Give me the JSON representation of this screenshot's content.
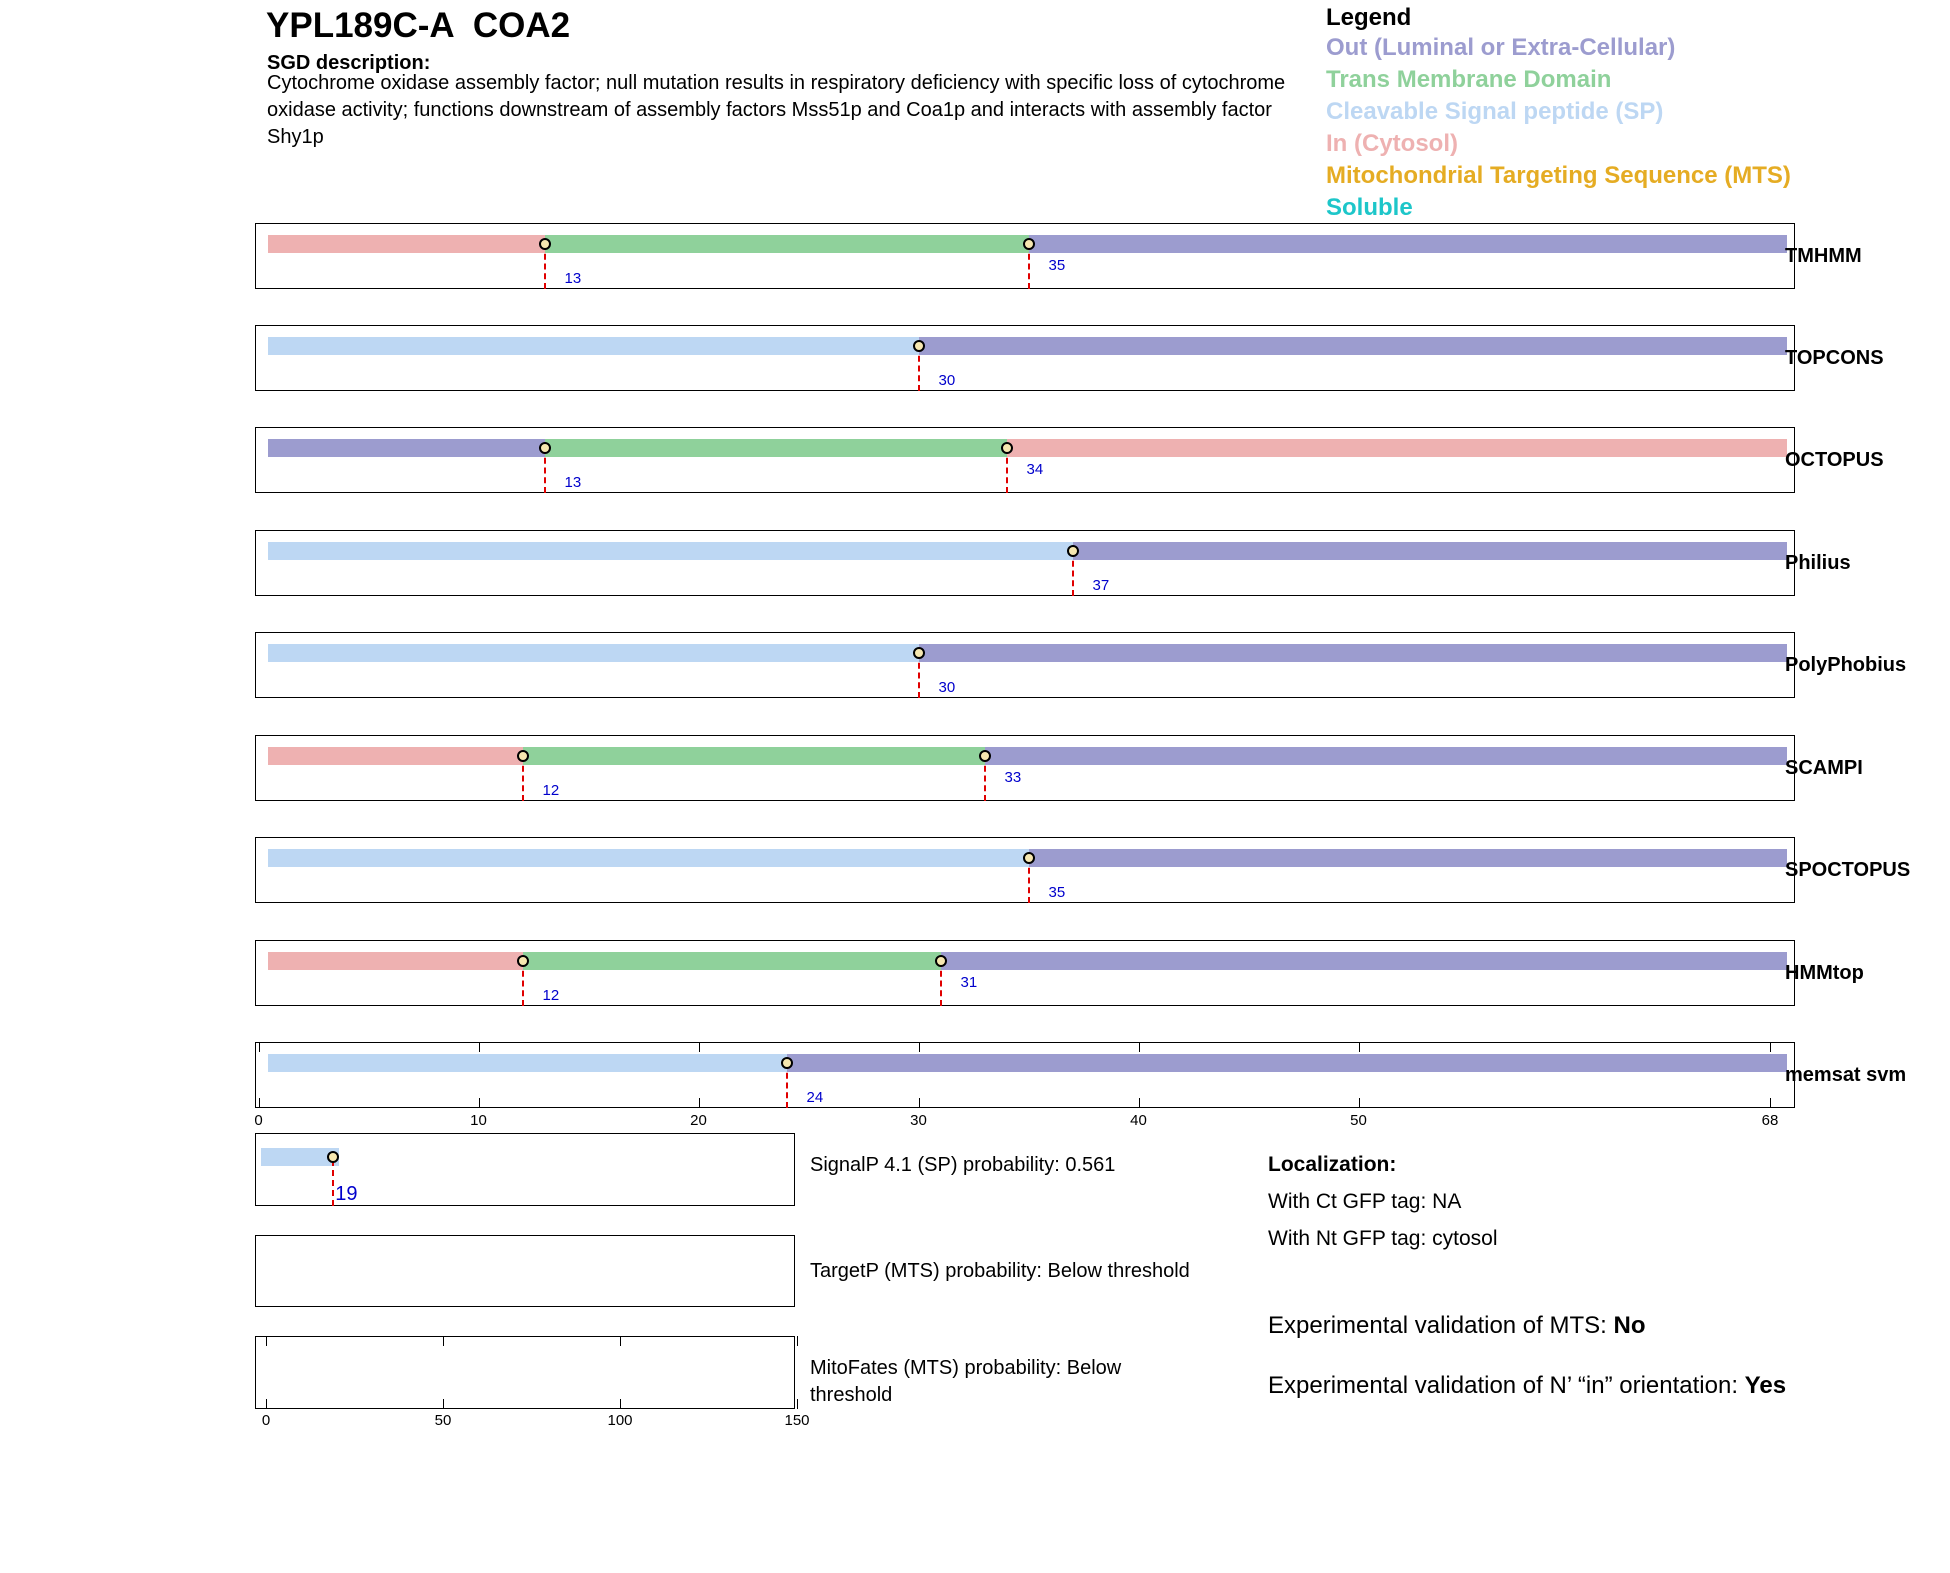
{
  "header": {
    "title": "YPL189C-A  COA2",
    "sgd_heading": "SGD description:",
    "sgd_text": "Cytochrome oxidase assembly factor; null mutation results in respiratory deficiency with specific loss of cytochrome oxidase activity; functions downstream of assembly factors Mss51p and Coa1p and interacts with assembly factor Shy1p"
  },
  "legend": {
    "heading": "Legend",
    "items": [
      {
        "key": "out",
        "label": "Out (Luminal or Extra-Cellular)",
        "color": "#9c9ccf"
      },
      {
        "key": "tm",
        "label": "Trans Membrane Domain",
        "color": "#8fd19b"
      },
      {
        "key": "sp",
        "label": "Cleavable Signal peptide (SP)",
        "color": "#bdd7f3"
      },
      {
        "key": "in",
        "label": "In (Cytosol)",
        "color": "#eeb1b1"
      },
      {
        "key": "mts",
        "label": "Mitochondrial Targeting Sequence (MTS)",
        "color": "#e5ac23"
      },
      {
        "key": "sol",
        "label": "Soluble",
        "color": "#1dc6c9"
      }
    ]
  },
  "chart_data": {
    "type": "topology-tracks",
    "sequence_length": 68,
    "x_ticks": [
      "0",
      "10",
      "20",
      "30",
      "40",
      "50",
      "68"
    ],
    "tracks": [
      {
        "method": "TMHMM",
        "segments": [
          {
            "type": "in",
            "start": 0,
            "end": 13
          },
          {
            "type": "tm",
            "start": 13,
            "end": 35
          },
          {
            "type": "out",
            "start": 35,
            "end": 68
          }
        ],
        "boundaries": [
          "13",
          "35"
        ]
      },
      {
        "method": "TOPCONS",
        "segments": [
          {
            "type": "sp",
            "start": 0,
            "end": 30
          },
          {
            "type": "out",
            "start": 30,
            "end": 68
          }
        ],
        "boundaries": [
          "30"
        ]
      },
      {
        "method": "OCTOPUS",
        "segments": [
          {
            "type": "out",
            "start": 0,
            "end": 13
          },
          {
            "type": "tm",
            "start": 13,
            "end": 34
          },
          {
            "type": "in",
            "start": 34,
            "end": 68
          }
        ],
        "boundaries": [
          "13",
          "34"
        ]
      },
      {
        "method": "Philius",
        "segments": [
          {
            "type": "sp",
            "start": 0,
            "end": 37
          },
          {
            "type": "out",
            "start": 37,
            "end": 68
          }
        ],
        "boundaries": [
          "37"
        ]
      },
      {
        "method": "PolyPhobius",
        "segments": [
          {
            "type": "sp",
            "start": 0,
            "end": 30
          },
          {
            "type": "out",
            "start": 30,
            "end": 68
          }
        ],
        "boundaries": [
          "30"
        ]
      },
      {
        "method": "SCAMPI",
        "segments": [
          {
            "type": "in",
            "start": 0,
            "end": 12
          },
          {
            "type": "tm",
            "start": 12,
            "end": 33
          },
          {
            "type": "out",
            "start": 33,
            "end": 68
          }
        ],
        "boundaries": [
          "12",
          "33"
        ]
      },
      {
        "method": "SPOCTOPUS",
        "segments": [
          {
            "type": "sp",
            "start": 0,
            "end": 35
          },
          {
            "type": "out",
            "start": 35,
            "end": 68
          }
        ],
        "boundaries": [
          "35"
        ]
      },
      {
        "method": "HMMtop",
        "segments": [
          {
            "type": "in",
            "start": 0,
            "end": 12
          },
          {
            "type": "tm",
            "start": 12,
            "end": 31
          },
          {
            "type": "out",
            "start": 31,
            "end": 68
          }
        ],
        "boundaries": [
          "12",
          "31"
        ]
      },
      {
        "method": "memsat svm",
        "segments": [
          {
            "type": "sp",
            "start": 0,
            "end": 24
          },
          {
            "type": "out",
            "start": 24,
            "end": 68
          }
        ],
        "boundaries": [
          "24"
        ]
      }
    ],
    "signalp": {
      "label": "SignalP 4.1 (SP) probability: 0.561",
      "cleavage": "19",
      "range": [
        0,
        150
      ]
    },
    "targetp": {
      "label": "TargetP (MTS) probability: Below threshold"
    },
    "mitofates": {
      "label": "MitoFates (MTS) probability: Below threshold"
    },
    "small_x_ticks": [
      "0",
      "50",
      "100",
      "150"
    ]
  },
  "localization": {
    "heading": "Localization:",
    "ct_gfp": "With Ct GFP tag: NA",
    "nt_gfp": "With Nt GFP tag: cytosol"
  },
  "validation": {
    "mts_label": "Experimental validation of MTS: ",
    "mts_value": "No",
    "orientation_label": "Experimental validation of N’ “in” orientation: ",
    "orientation_value": "Yes"
  }
}
